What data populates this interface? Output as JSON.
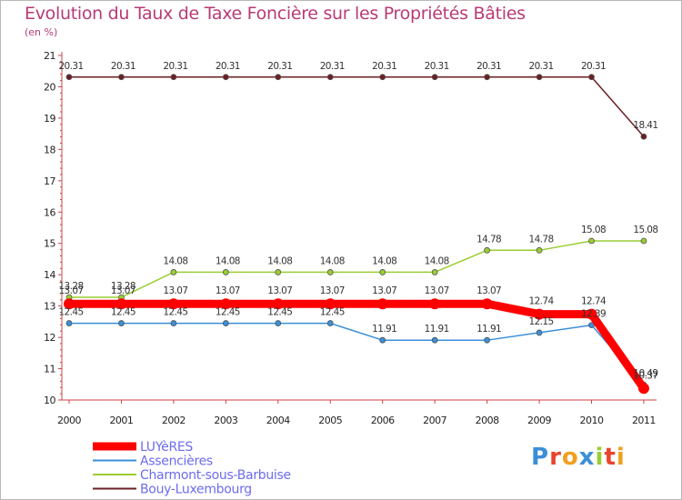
{
  "title": "Evolution du Taux de Taxe Foncière sur les Propriétés Bâties",
  "unit_label": "(en %)",
  "logo": {
    "text": "Proxiti",
    "letter_colors": [
      "#3a8fd8",
      "#e8452c",
      "#f0a020",
      "#3a8fd8",
      "#9acd32",
      "#e8452c",
      "#f0a020"
    ]
  },
  "chart_data": {
    "type": "line",
    "title": "Evolution du Taux de Taxe Foncière sur les Propriétés Bâties",
    "ylabel": "(en %)",
    "xlabel": "",
    "ylim": [
      10,
      21
    ],
    "yticks": [
      "10",
      "11",
      "12",
      "13",
      "14",
      "15",
      "16",
      "17",
      "18",
      "19",
      "20",
      "21"
    ],
    "categories": [
      "2000",
      "2001",
      "2002",
      "2003",
      "2004",
      "2005",
      "2006",
      "2007",
      "2008",
      "2009",
      "2010",
      "2011"
    ],
    "legend_position": "bottom-left",
    "series": [
      {
        "name": "LUYèRES",
        "color": "#ff0000",
        "values": [
          13.07,
          13.07,
          13.07,
          13.07,
          13.07,
          13.07,
          13.07,
          13.07,
          13.07,
          12.74,
          12.74,
          10.37
        ],
        "labels": [
          "13.07",
          "13.07",
          "13.07",
          "13.07",
          "13.07",
          "13.07",
          "13.07",
          "13.07",
          "13.07",
          "12.74",
          "12.74",
          "10.37"
        ]
      },
      {
        "name": "Assencières",
        "color": "#3a8fd8",
        "values": [
          12.45,
          12.45,
          12.45,
          12.45,
          12.45,
          12.45,
          11.91,
          11.91,
          11.91,
          12.15,
          12.39,
          10.49
        ],
        "labels": [
          "12.45",
          "12.45",
          "12.45",
          "12.45",
          "12.45",
          "12.45",
          "11.91",
          "11.91",
          "11.91",
          "12.15",
          "12.39",
          "10.49"
        ]
      },
      {
        "name": "Charmont-sous-Barbuise",
        "color": "#9acd32",
        "values": [
          13.28,
          13.28,
          14.08,
          14.08,
          14.08,
          14.08,
          14.08,
          14.08,
          14.78,
          14.78,
          15.08,
          15.08
        ],
        "labels": [
          "13.28",
          "13.28",
          "14.08",
          "14.08",
          "14.08",
          "14.08",
          "14.08",
          "14.08",
          "14.78",
          "14.78",
          "15.08",
          "15.08"
        ]
      },
      {
        "name": "Bouy-Luxembourg",
        "color": "#6b1f24",
        "values": [
          20.31,
          20.31,
          20.31,
          20.31,
          20.31,
          20.31,
          20.31,
          20.31,
          20.31,
          20.31,
          20.31,
          18.41
        ],
        "labels": [
          "20.31",
          "20.31",
          "20.31",
          "20.31",
          "20.31",
          "20.31",
          "20.31",
          "20.31",
          "20.31",
          "20.31",
          "20.31",
          "18.41"
        ]
      }
    ]
  }
}
